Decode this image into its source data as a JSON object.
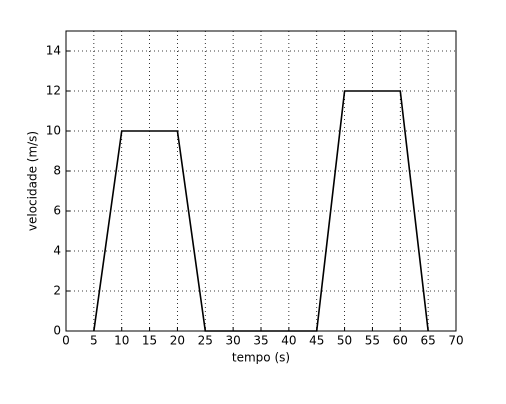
{
  "chart_data": {
    "type": "line",
    "xlabel": "tempo (s)",
    "ylabel": "velocidade (m/s)",
    "x": [
      5,
      10,
      20,
      25,
      45,
      50,
      60,
      65
    ],
    "series": [
      {
        "color": "#000000",
        "values": [
          0,
          10,
          10,
          0,
          0,
          12,
          12,
          0
        ]
      }
    ],
    "xlim": [
      0,
      70
    ],
    "xticks": [
      0,
      5,
      10,
      15,
      20,
      25,
      30,
      35,
      40,
      45,
      50,
      55,
      60,
      65,
      70
    ],
    "ylim": [
      0,
      15
    ],
    "yticks": [
      0,
      2,
      4,
      6,
      8,
      10,
      12,
      14
    ],
    "grid": true
  }
}
